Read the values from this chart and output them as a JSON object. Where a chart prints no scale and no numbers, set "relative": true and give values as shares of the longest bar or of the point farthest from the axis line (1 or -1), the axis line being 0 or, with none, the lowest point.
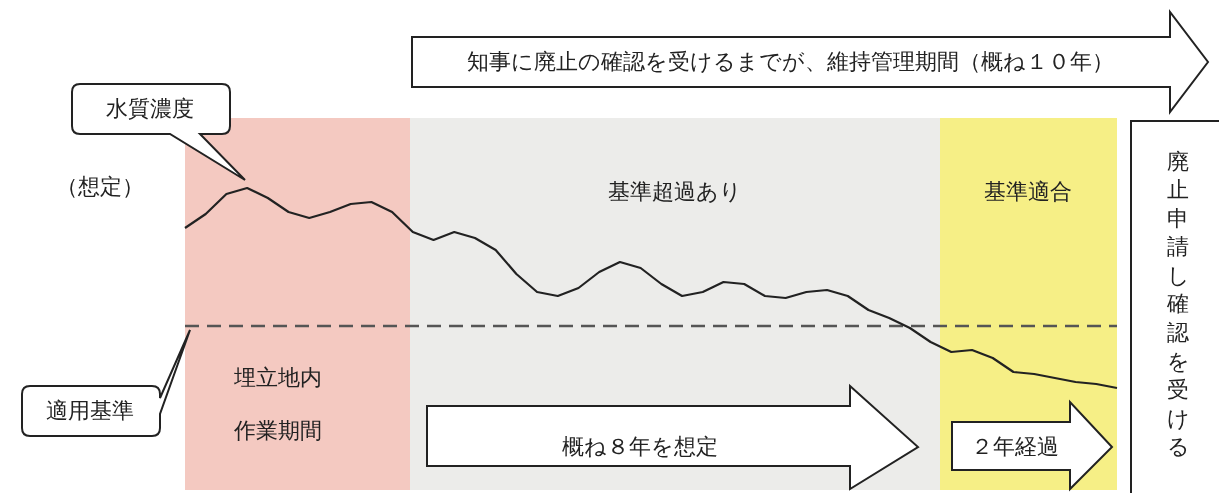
{
  "chart_data": {
    "type": "line",
    "relative": true,
    "tick_labels": false,
    "legend": false,
    "marker": "none",
    "categories": [
      null,
      null,
      null,
      null,
      null,
      null,
      null,
      null,
      null,
      null,
      null,
      null,
      null,
      null,
      null,
      null,
      null,
      null,
      null,
      null,
      null,
      null,
      null,
      null,
      null,
      null,
      null,
      null,
      null,
      null,
      null,
      null,
      null,
      null,
      null,
      null,
      null,
      null,
      null,
      null,
      null,
      null,
      null,
      null,
      null,
      null
    ],
    "series": [
      {
        "color": "#222222",
        "line_style": "solid",
        "values": [
          0.8,
          0.87,
          0.97,
          1,
          0.95,
          0.88,
          0.85,
          0.88,
          0.92,
          0.93,
          0.88,
          0.78,
          0.74,
          0.78,
          0.75,
          0.69,
          0.57,
          0.48,
          0.46,
          0.5,
          0.58,
          0.63,
          0.6,
          0.52,
          0.46,
          0.48,
          0.53,
          0.52,
          0.46,
          0.45,
          0.48,
          0.49,
          0.46,
          0.39,
          0.35,
          0.3,
          0.23,
          0.18,
          0.19,
          0.15,
          0.08,
          0.07,
          0.05,
          0.03,
          0.02,
          0
        ]
      },
      {
        "color": "#555555",
        "line_style": "dashed",
        "values": [
          0.31,
          0.31,
          0.31,
          0.31,
          0.31,
          0.31,
          0.31,
          0.31,
          0.31,
          0.31,
          0.31,
          0.31,
          0.31,
          0.31,
          0.31,
          0.31,
          0.31,
          0.31,
          0.31,
          0.31,
          0.31,
          0.31,
          0.31,
          0.31,
          0.31,
          0.31,
          0.31,
          0.31,
          0.31,
          0.31,
          0.31,
          0.31,
          0.31,
          0.31,
          0.31,
          0.31,
          0.31,
          0.31,
          0.31,
          0.31,
          0.31,
          0.31,
          0.31,
          0.31,
          0.31,
          0.31
        ]
      }
    ],
    "annotations": [
      "（想定）",
      "知事に廃止の確認を受けるまでが、維持管理期間（概ね１０年）",
      "概ね８年を想定",
      "２年経過",
      "廃止申請し確認を受ける",
      "埋立地内作業期間",
      "基準超過あり",
      "基準適合",
      "水質濃度",
      "適用基準"
    ]
  }
}
